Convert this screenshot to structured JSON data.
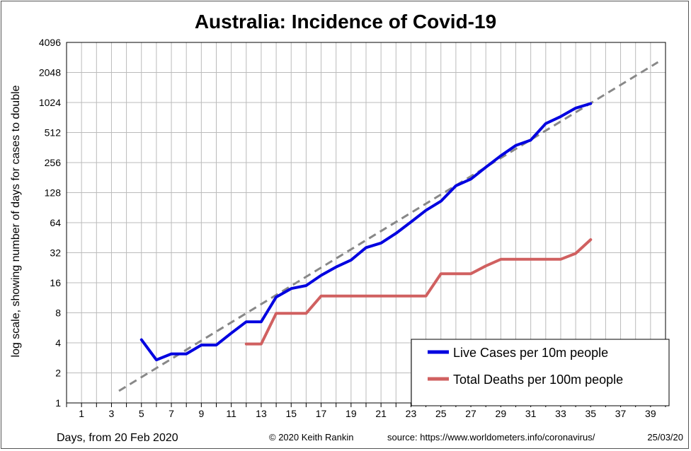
{
  "chart_data": {
    "type": "line",
    "title": "Australia: Incidence of Covid-19",
    "xlabel": "Days, from 20 Feb 2020",
    "ylabel": "log scale, showing number of days for cases to double",
    "y_scale": "log2",
    "ylim": [
      1,
      4096
    ],
    "xlim": [
      0,
      40
    ],
    "y_ticks": [
      1,
      2,
      4,
      8,
      16,
      32,
      64,
      128,
      256,
      512,
      1024,
      2048,
      4096
    ],
    "x_ticks": [
      1,
      3,
      5,
      7,
      9,
      11,
      13,
      15,
      17,
      19,
      21,
      23,
      25,
      27,
      29,
      31,
      33,
      35,
      37,
      39
    ],
    "grid": true,
    "legend_position": "bottom-right",
    "series": [
      {
        "name": "Live Cases per 10m people",
        "color": "#0000e0",
        "x": [
          5,
          6,
          7,
          8,
          9,
          10,
          11,
          12,
          13,
          14,
          15,
          16,
          17,
          18,
          19,
          20,
          21,
          22,
          23,
          24,
          25,
          26,
          27,
          28,
          29,
          30,
          31,
          32,
          33,
          34,
          35
        ],
        "y": [
          4.3,
          2.7,
          3.1,
          3.1,
          3.8,
          3.8,
          5,
          6.5,
          6.5,
          11.5,
          14,
          15,
          19,
          23,
          27,
          36,
          40,
          50,
          65,
          85,
          105,
          150,
          175,
          230,
          300,
          380,
          430,
          630,
          740,
          900,
          1000
        ]
      },
      {
        "name": "Total Deaths per 100m people",
        "color": "#d06060",
        "x": [
          12,
          13,
          14,
          15,
          16,
          17,
          18,
          19,
          20,
          21,
          22,
          23,
          24,
          25,
          26,
          27,
          28,
          29,
          30,
          31,
          32,
          33,
          34,
          35
        ],
        "y": [
          3.9,
          3.9,
          7.9,
          7.9,
          7.9,
          11.8,
          11.8,
          11.8,
          11.8,
          11.8,
          11.8,
          11.8,
          11.8,
          19.7,
          19.7,
          19.7,
          23.6,
          27.5,
          27.5,
          27.5,
          27.5,
          27.5,
          31.5,
          43.3
        ]
      },
      {
        "color": "#888888",
        "dashed": true,
        "x": [
          3.5,
          39.5
        ],
        "y": [
          1.32,
          2600
        ]
      }
    ]
  },
  "footer": {
    "copyright": "© 2020  Keith Rankin",
    "source": "source:  https://www.worldometers.info/coronavirus/",
    "date": "25/03/20"
  }
}
